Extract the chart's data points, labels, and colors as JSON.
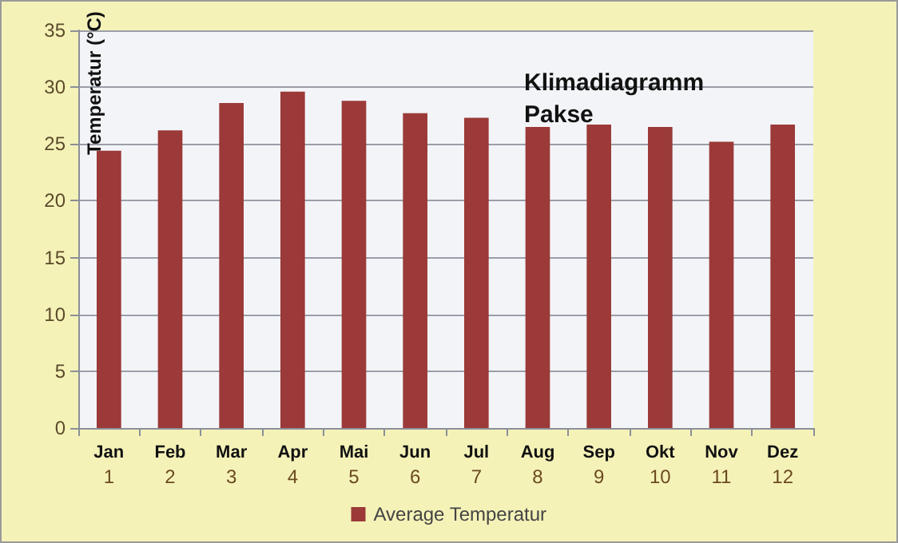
{
  "chart_data": {
    "type": "bar",
    "title": "Klimadiagramm\nPakse",
    "ylabel": "Temperatur (°C)",
    "categories": [
      "Jan\n1",
      "Feb\n2",
      "Mar\n3",
      "Apr\n4",
      "Mai\n5",
      "Jun\n6",
      "Jul\n7",
      "Aug\n8",
      "Sep\n9",
      "Okt\n10",
      "Nov\n11",
      "Dez\n12"
    ],
    "series": [
      {
        "name": "Average Temperatur",
        "color": "#9b3a38",
        "values": [
          24.4,
          26.2,
          28.6,
          29.6,
          28.8,
          27.7,
          27.3,
          26.5,
          26.7,
          26.5,
          25.2,
          26.7
        ]
      }
    ],
    "ylim": [
      0,
      35
    ],
    "yticks": [
      0,
      5,
      10,
      15,
      20,
      25,
      30,
      35
    ],
    "grid": "y",
    "legend": "bottom"
  }
}
